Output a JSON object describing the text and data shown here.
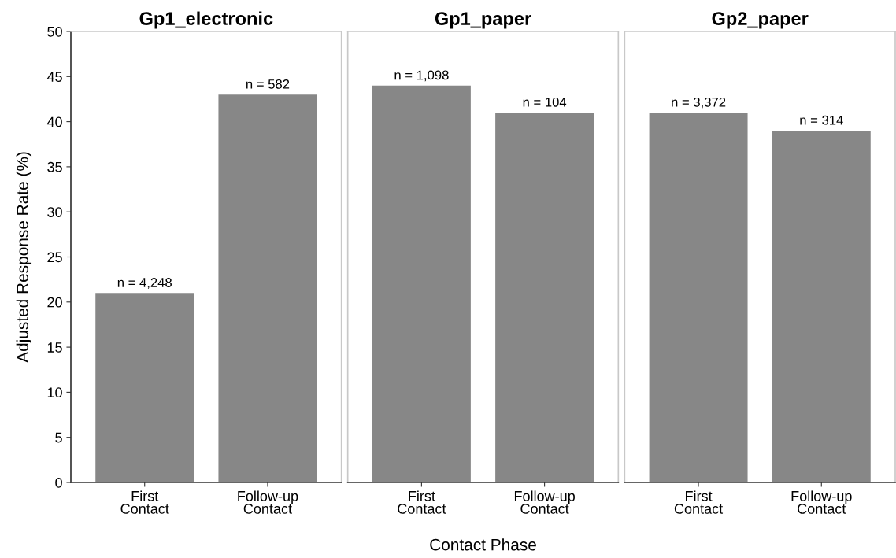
{
  "chart_data": [
    {
      "type": "bar",
      "title": "Gp1_electronic",
      "ylabel": "Adjusted Response Rate (%)",
      "categories": [
        "First\nContact",
        "Follow-up\nContact"
      ],
      "values": [
        21,
        43
      ],
      "color": "#878787",
      "ylim": [
        0,
        50
      ],
      "yticks": [
        0,
        5,
        10,
        15,
        20,
        25,
        30,
        35,
        40,
        45,
        50
      ],
      "grid": false,
      "annotations": [
        {
          "text": "n = 4,248",
          "x": "First\nContact",
          "y": 21
        },
        {
          "text": "n = 582",
          "x": "Follow-up\nContact",
          "y": 43
        }
      ]
    },
    {
      "type": "bar",
      "title": "Gp1_paper",
      "xlabel": "Contact Phase",
      "categories": [
        "First\nContact",
        "Follow-up\nContact"
      ],
      "values": [
        44,
        41
      ],
      "color": "#878787",
      "ylim": [
        0,
        50
      ],
      "yticks": [
        0,
        5,
        10,
        15,
        20,
        25,
        30,
        35,
        40,
        45,
        50
      ],
      "tick_labels": "x",
      "grid": false,
      "annotations": [
        {
          "text": "n = 1,098",
          "x": "First\nContact",
          "y": 44
        },
        {
          "text": "n = 104",
          "x": "Follow-up\nContact",
          "y": 41
        }
      ]
    },
    {
      "type": "bar",
      "title": "Gp2_paper",
      "categories": [
        "First\nContact",
        "Follow-up\nContact"
      ],
      "values": [
        41,
        39
      ],
      "color": "#878787",
      "ylim": [
        0,
        50
      ],
      "yticks": [
        0,
        5,
        10,
        15,
        20,
        25,
        30,
        35,
        40,
        45,
        50
      ],
      "tick_labels": "x",
      "grid": false,
      "annotations": [
        {
          "text": "n = 3,372",
          "x": "First\nContact",
          "y": 41
        },
        {
          "text": "n = 314",
          "x": "Follow-up\nContact",
          "y": 39
        }
      ]
    }
  ]
}
